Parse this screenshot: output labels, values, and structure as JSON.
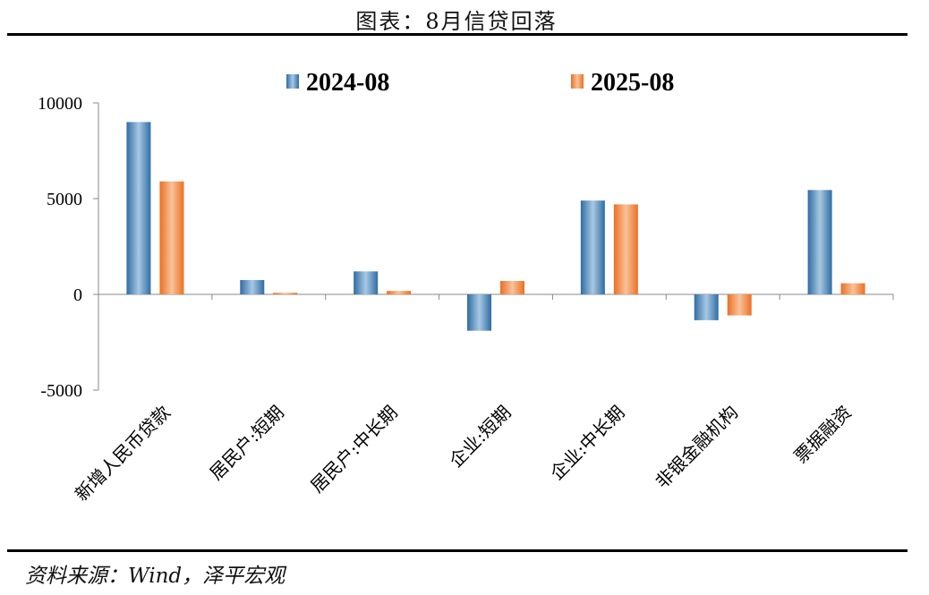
{
  "header": {
    "title": "图表：8月信贷回落"
  },
  "footer": {
    "source": "资料来源：Wind，泽平宏观"
  },
  "colors": {
    "series1": "#3f7fb3",
    "series2": "#f07d3a"
  },
  "chart_data": {
    "type": "bar",
    "categories": [
      "新增人民币贷款",
      "居民户:短期",
      "居民户:中长期",
      "企业:短期",
      "企业:中长期",
      "非银金融机构",
      "票据融资"
    ],
    "series": [
      {
        "name": "2024-08",
        "values": [
          9000,
          750,
          1200,
          -1900,
          4900,
          -1350,
          5450
        ]
      },
      {
        "name": "2025-08",
        "values": [
          5900,
          80,
          180,
          700,
          4700,
          -1100,
          580
        ]
      }
    ],
    "yticks": [
      10000,
      5000,
      0,
      -5000
    ],
    "ylim": [
      -5000,
      10000
    ],
    "legend": "top-center",
    "grid": false
  }
}
